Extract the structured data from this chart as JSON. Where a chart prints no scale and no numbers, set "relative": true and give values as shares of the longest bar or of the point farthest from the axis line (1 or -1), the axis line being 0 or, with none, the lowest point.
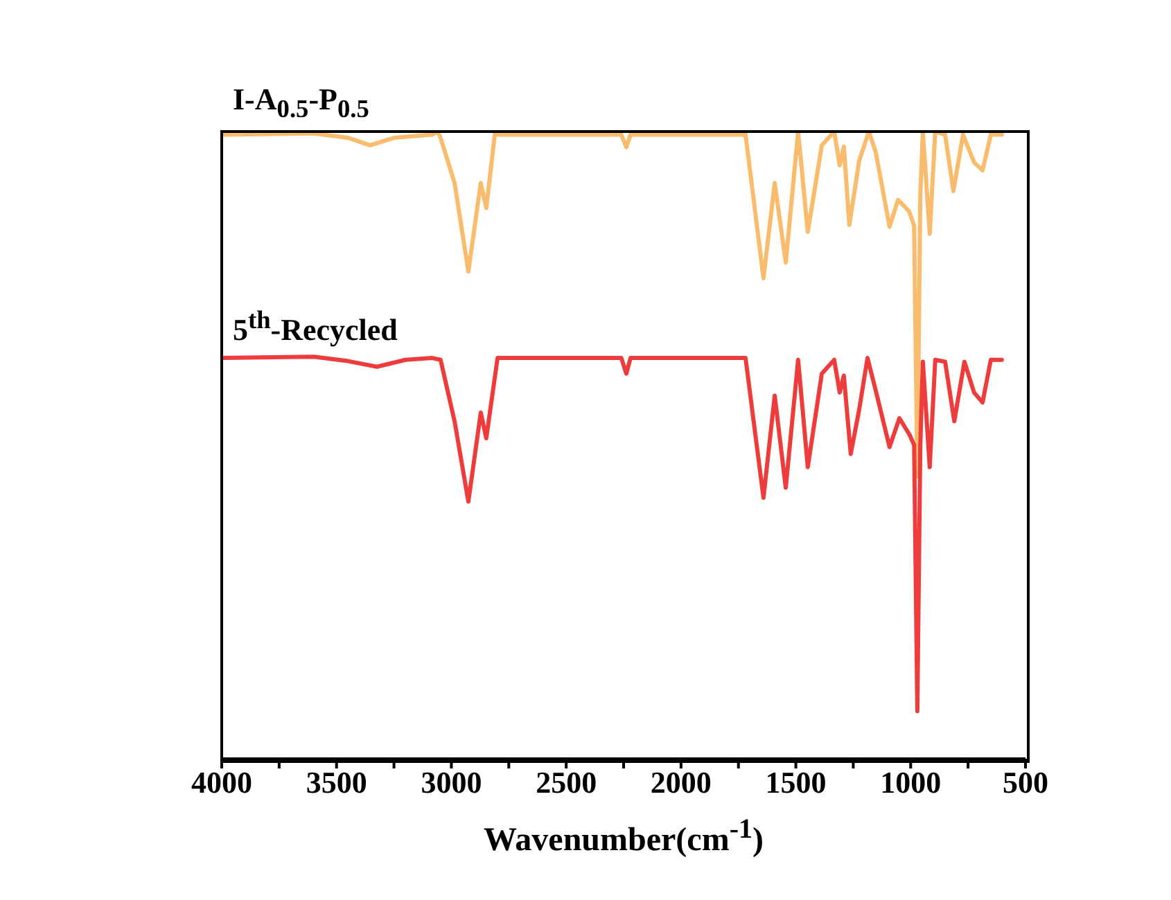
{
  "chart_data": {
    "type": "line",
    "relative": true,
    "xlabel": "Wavenumber(cm$^{-1}$)",
    "xlim": [
      4000,
      500
    ],
    "xticks": [
      4000,
      {
        "value": 3750,
        "label": null
      },
      3500,
      {
        "value": 3250,
        "label": null
      },
      3000,
      {
        "value": 2750,
        "label": null
      },
      2500,
      {
        "value": 2250,
        "label": null
      },
      2000,
      {
        "value": 1750,
        "label": null
      },
      1500,
      {
        "value": 1250,
        "label": null
      },
      1000,
      {
        "value": 750,
        "label": null
      },
      500
    ],
    "series": [
      {
        "name": "I-A$_{0.5}$-P$_{0.5}$",
        "color": "#f9bb6c",
        "x": [
          4000,
          3600,
          3450,
          3354,
          3250,
          3083,
          3060,
          3047,
          2986,
          2926,
          2872,
          2848,
          2811,
          2260,
          2238,
          2220,
          1719,
          1641,
          1592,
          1544,
          1490,
          1448,
          1387,
          1333,
          1309,
          1291,
          1267,
          1224,
          1182,
          1152,
          1092,
          1055,
          1007,
          985,
          971,
          958,
          947,
          917,
          893,
          850,
          814,
          772,
          724,
          687,
          651,
          603
        ],
        "values": [
          0.995,
          0.997,
          0.99,
          0.978,
          0.99,
          0.995,
          1.0,
          0.99,
          0.918,
          0.777,
          0.918,
          0.878,
          0.995,
          0.995,
          0.975,
          0.995,
          0.995,
          0.766,
          0.918,
          0.791,
          1.0,
          0.84,
          0.978,
          1.0,
          0.946,
          0.976,
          0.851,
          0.954,
          1.0,
          0.967,
          0.848,
          0.891,
          0.873,
          0.85,
          0.45,
          0.9,
          1.0,
          0.837,
          1.0,
          0.995,
          0.905,
          0.995,
          0.951,
          0.938,
          0.995,
          0.995
        ]
      },
      {
        "name": "5$^{th}$-Recycled",
        "color": "#ee3b3b",
        "x": [
          4000,
          3600,
          3450,
          3324,
          3200,
          3083,
          3047,
          2986,
          2926,
          2872,
          2848,
          2799,
          2260,
          2238,
          2220,
          1719,
          1641,
          1592,
          1544,
          1490,
          1448,
          1387,
          1333,
          1309,
          1291,
          1261,
          1224,
          1188,
          1152,
          1092,
          1049,
          1004,
          985,
          971,
          958,
          947,
          917,
          893,
          850,
          810,
          766,
          724,
          687,
          651,
          603
        ],
        "values": [
          0.639,
          0.641,
          0.634,
          0.625,
          0.636,
          0.639,
          0.636,
          0.538,
          0.41,
          0.552,
          0.511,
          0.639,
          0.639,
          0.614,
          0.639,
          0.639,
          0.416,
          0.579,
          0.432,
          0.636,
          0.465,
          0.614,
          0.636,
          0.584,
          0.611,
          0.486,
          0.557,
          0.639,
          0.587,
          0.497,
          0.543,
          0.516,
          0.5,
          0.076,
          0.5,
          0.633,
          0.465,
          0.636,
          0.633,
          0.538,
          0.633,
          0.584,
          0.568,
          0.636,
          0.636
        ]
      }
    ]
  }
}
